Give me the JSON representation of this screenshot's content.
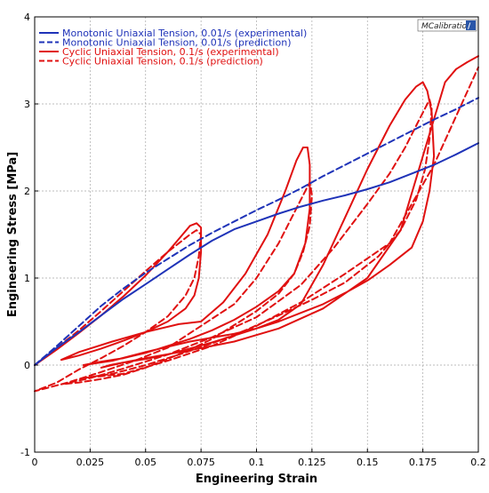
{
  "watermark": "MCalibration",
  "colors": {
    "monotonic": "#1f33b8",
    "cyclic": "#e01010",
    "grid": "#a8a8a8",
    "frame": "#000000",
    "background": "#ffffff"
  },
  "chart_data": {
    "type": "line",
    "xlabel": "Engineering Strain",
    "ylabel": "Engineering Stress [MPa]",
    "xlim": [
      0,
      0.2
    ],
    "ylim": [
      -1,
      4
    ],
    "grid": true,
    "legend_position": "top-left",
    "xticks": [
      0,
      0.025,
      0.05,
      0.075,
      0.1,
      0.125,
      0.15,
      0.175,
      0.2
    ],
    "xtick_labels": [
      "0",
      "0.025",
      "0.05",
      "0.075",
      "0.1",
      "0.125",
      "0.15",
      "0.175",
      "0.2"
    ],
    "yticks": [
      -1,
      0,
      1,
      2,
      3,
      4
    ],
    "ytick_labels": [
      "-1",
      "0",
      "1",
      "2",
      "3",
      "4"
    ],
    "series": [
      {
        "name": "Monotonic Uniaxial Tension, 0.01/s (experimental)",
        "color": "#1f33b8",
        "dash": "solid",
        "x": [
          0,
          0.01,
          0.02,
          0.03,
          0.04,
          0.05,
          0.06,
          0.07,
          0.08,
          0.09,
          0.1,
          0.11,
          0.12,
          0.13,
          0.14,
          0.15,
          0.16,
          0.17,
          0.18,
          0.19,
          0.2
        ],
        "y": [
          0,
          0.2,
          0.38,
          0.57,
          0.76,
          0.93,
          1.1,
          1.27,
          1.43,
          1.56,
          1.65,
          1.74,
          1.82,
          1.89,
          1.95,
          2.02,
          2.1,
          2.2,
          2.3,
          2.42,
          2.55
        ]
      },
      {
        "name": "Monotonic Uniaxial Tension, 0.01/s (prediction)",
        "color": "#1f33b8",
        "dash": "dashed",
        "x": [
          0,
          0.01,
          0.02,
          0.03,
          0.04,
          0.05,
          0.06,
          0.07,
          0.08,
          0.09,
          0.1,
          0.11,
          0.12,
          0.13,
          0.14,
          0.15,
          0.16,
          0.17,
          0.18,
          0.19,
          0.2
        ],
        "y": [
          0,
          0.22,
          0.45,
          0.68,
          0.88,
          1.06,
          1.22,
          1.38,
          1.52,
          1.65,
          1.78,
          1.9,
          2.03,
          2.17,
          2.3,
          2.43,
          2.56,
          2.69,
          2.82,
          2.94,
          3.07
        ]
      },
      {
        "name": "Cyclic Uniaxial Tension, 0.1/s (experimental)",
        "color": "#e01010",
        "dash": "solid",
        "x": [
          0,
          0.01,
          0.02,
          0.03,
          0.04,
          0.05,
          0.06,
          0.066,
          0.07,
          0.073,
          0.075,
          0.075,
          0.074,
          0.072,
          0.068,
          0.06,
          0.05,
          0.04,
          0.03,
          0.02,
          0.012,
          0.02,
          0.035,
          0.05,
          0.065,
          0.075,
          0.085,
          0.095,
          0.105,
          0.113,
          0.118,
          0.121,
          0.123,
          0.124,
          0.124,
          0.122,
          0.117,
          0.11,
          0.1,
          0.09,
          0.08,
          0.07,
          0.06,
          0.05,
          0.04,
          0.03,
          0.022,
          0.035,
          0.05,
          0.07,
          0.09,
          0.1,
          0.11,
          0.12,
          0.13,
          0.14,
          0.15,
          0.16,
          0.167,
          0.172,
          0.175,
          0.177,
          0.179,
          0.18,
          0.178,
          0.175,
          0.17,
          0.16,
          0.15,
          0.14,
          0.13,
          0.12,
          0.11,
          0.1,
          0.09,
          0.08,
          0.07,
          0.06,
          0.05,
          0.04,
          0.03,
          0.034,
          0.05,
          0.07,
          0.09,
          0.11,
          0.13,
          0.15,
          0.165,
          0.175,
          0.185,
          0.19,
          0.195,
          0.2
        ],
        "y": [
          0,
          0.18,
          0.37,
          0.57,
          0.79,
          1.03,
          1.3,
          1.48,
          1.6,
          1.63,
          1.58,
          1.3,
          1.0,
          0.8,
          0.65,
          0.5,
          0.38,
          0.28,
          0.19,
          0.11,
          0.06,
          0.15,
          0.27,
          0.38,
          0.47,
          0.5,
          0.72,
          1.05,
          1.5,
          2.0,
          2.35,
          2.5,
          2.5,
          2.3,
          1.8,
          1.4,
          1.05,
          0.85,
          0.67,
          0.52,
          0.4,
          0.3,
          0.22,
          0.14,
          0.08,
          0.04,
          0.0,
          0.05,
          0.15,
          0.27,
          0.36,
          0.42,
          0.52,
          0.7,
          1.15,
          1.7,
          2.25,
          2.75,
          3.05,
          3.2,
          3.25,
          3.15,
          2.9,
          2.4,
          2.0,
          1.65,
          1.35,
          1.15,
          0.97,
          0.83,
          0.7,
          0.6,
          0.5,
          0.42,
          0.34,
          0.26,
          0.19,
          0.12,
          0.07,
          0.03,
          -0.03,
          0.0,
          0.08,
          0.17,
          0.27,
          0.42,
          0.65,
          1.0,
          1.55,
          2.4,
          3.25,
          3.4,
          3.48,
          3.55
        ]
      },
      {
        "name": "Cyclic Uniaxial Tension, 0.1/s (prediction)",
        "color": "#e01010",
        "dash": "dashed",
        "x": [
          0,
          0.01,
          0.02,
          0.03,
          0.04,
          0.05,
          0.06,
          0.065,
          0.07,
          0.073,
          0.075,
          0.074,
          0.072,
          0.068,
          0.06,
          0.05,
          0.04,
          0.03,
          0.02,
          0.01,
          0.0,
          0.015,
          0.03,
          0.045,
          0.06,
          0.075,
          0.09,
          0.1,
          0.11,
          0.117,
          0.122,
          0.124,
          0.125,
          0.124,
          0.121,
          0.117,
          0.11,
          0.1,
          0.09,
          0.08,
          0.07,
          0.06,
          0.05,
          0.04,
          0.03,
          0.02,
          0.012,
          0.025,
          0.04,
          0.06,
          0.08,
          0.1,
          0.12,
          0.135,
          0.15,
          0.16,
          0.167,
          0.172,
          0.176,
          0.178,
          0.179,
          0.178,
          0.176,
          0.172,
          0.165,
          0.155,
          0.14,
          0.125,
          0.11,
          0.095,
          0.08,
          0.065,
          0.05,
          0.035,
          0.022,
          0.04,
          0.06,
          0.08,
          0.1,
          0.12,
          0.14,
          0.16,
          0.18,
          0.2
        ],
        "y": [
          0,
          0.2,
          0.4,
          0.62,
          0.85,
          1.08,
          1.3,
          1.4,
          1.5,
          1.55,
          1.5,
          1.25,
          1.0,
          0.8,
          0.56,
          0.38,
          0.22,
          0.08,
          -0.05,
          -0.2,
          -0.3,
          -0.2,
          -0.08,
          0.05,
          0.2,
          0.45,
          0.7,
          1.0,
          1.4,
          1.75,
          2.0,
          2.1,
          1.95,
          1.6,
          1.3,
          1.05,
          0.82,
          0.62,
          0.46,
          0.3,
          0.18,
          0.07,
          -0.03,
          -0.11,
          -0.16,
          -0.2,
          -0.22,
          -0.15,
          -0.04,
          0.12,
          0.32,
          0.55,
          0.92,
          1.35,
          1.85,
          2.2,
          2.5,
          2.75,
          2.95,
          3.05,
          2.95,
          2.6,
          2.25,
          1.9,
          1.55,
          1.25,
          0.95,
          0.75,
          0.57,
          0.4,
          0.25,
          0.12,
          0.0,
          -0.1,
          -0.15,
          -0.1,
          0.05,
          0.22,
          0.45,
          0.72,
          1.05,
          1.4,
          2.3,
          3.42
        ]
      }
    ]
  }
}
